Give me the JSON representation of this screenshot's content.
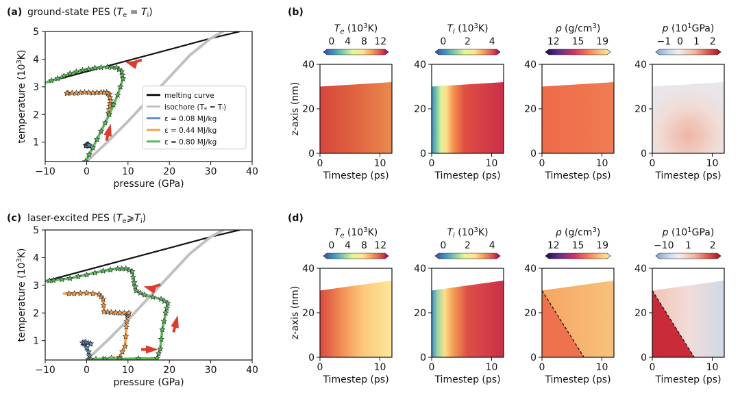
{
  "panels": {
    "a": {
      "label": "(a)",
      "title": "ground-state PES (",
      "title_math": "T",
      "title_sub1": "e",
      "title_eq": " = ",
      "title_math2": "T",
      "title_sub2": "i",
      "title_end": ")"
    },
    "b": {
      "label": "(b)"
    },
    "c": {
      "label": "(c)",
      "title": "laser-excited PES (",
      "title_math": "T",
      "title_sub1": "e",
      "title_eq": "⩾",
      "title_math2": "T",
      "title_sub2": "i",
      "title_end": ")"
    },
    "d": {
      "label": "(d)"
    }
  },
  "pes_axes": {
    "xlabel": "pressure (GPa)",
    "ylabel_main": "temperature (10",
    "ylabel_sup": "3",
    "ylabel_end": "K)",
    "xlim": [
      -10,
      40
    ],
    "ylim": [
      0.3,
      5
    ],
    "xticks": [
      -10,
      0,
      10,
      20,
      30,
      40
    ],
    "yticks": [
      1,
      2,
      3,
      4,
      5
    ]
  },
  "legend": {
    "placement": "lower-right",
    "entries": [
      {
        "label": "melting curve",
        "color": "#111111"
      },
      {
        "label": "isochore (Tₑ = Tᵢ)",
        "color": "#c0c0c0"
      },
      {
        "label": "ε = 0.08 MJ/kg",
        "color": "#5a8fc8"
      },
      {
        "label": "ε = 0.44 MJ/kg",
        "color": "#f7a04d"
      },
      {
        "label": "ε = 0.80 MJ/kg",
        "color": "#5cb85c"
      }
    ]
  },
  "chart_data": [
    {
      "type": "line",
      "panel": "a",
      "series": [
        {
          "name": "melting curve",
          "color": "#111111",
          "x": [
            -10,
            0,
            10,
            20,
            30,
            37
          ],
          "y": [
            3.15,
            3.55,
            3.95,
            4.35,
            4.75,
            5.0
          ]
        },
        {
          "name": "isochore",
          "color": "#c0c0c0",
          "x": [
            0,
            5,
            10,
            15,
            20,
            25,
            30,
            33
          ],
          "y": [
            0.3,
            1.0,
            1.75,
            2.55,
            3.35,
            4.15,
            4.75,
            5.0
          ]
        },
        {
          "name": "ε = 0.08 MJ/kg",
          "color": "#5a8fc8",
          "x": [
            -0.2,
            0.2,
            0.6,
            0.3,
            -0.1,
            0.4,
            0.8
          ],
          "y": [
            0.88,
            0.9,
            0.86,
            0.92,
            0.89,
            0.87,
            0.9
          ]
        },
        {
          "name": "ε = 0.44 MJ/kg",
          "color": "#f7a04d",
          "x": [
            5.3,
            5.6,
            5.8,
            5.5,
            4.8,
            3.5,
            1.5,
            -0.5,
            -2.5,
            -4.5,
            -5.0
          ],
          "y": [
            2.05,
            2.3,
            2.5,
            2.72,
            2.8,
            2.8,
            2.78,
            2.8,
            2.77,
            2.78,
            2.75
          ]
        },
        {
          "name": "ε = 0.80 MJ/kg",
          "color": "#5cb85c",
          "x": [
            -0.3,
            1.5,
            3.5,
            5.5,
            7.5,
            8.8,
            8.5,
            7.2,
            5,
            2,
            -1,
            -4,
            -7,
            -10
          ],
          "y": [
            0.3,
            0.8,
            1.4,
            2.0,
            2.7,
            3.3,
            3.55,
            3.7,
            3.72,
            3.68,
            3.6,
            3.48,
            3.3,
            3.15
          ]
        }
      ],
      "markers_on": [
        "ε = 0.08 MJ/kg",
        "ε = 0.44 MJ/kg",
        "ε = 0.80 MJ/kg"
      ],
      "arrows": [
        {
          "x": 12,
          "y": 3.85,
          "dir": "left"
        },
        {
          "x": 5.3,
          "y": 1.25,
          "dir": "up"
        }
      ]
    },
    {
      "type": "line",
      "panel": "c",
      "series": [
        {
          "name": "melting curve",
          "color": "#111111",
          "x": [
            -10,
            0,
            10,
            20,
            30,
            37
          ],
          "y": [
            3.15,
            3.55,
            3.95,
            4.35,
            4.75,
            5.0
          ]
        },
        {
          "name": "isochore",
          "color": "#c0c0c0",
          "x": [
            0,
            5,
            10,
            15,
            20,
            25,
            30,
            33
          ],
          "y": [
            0.3,
            1.0,
            1.75,
            2.55,
            3.35,
            4.15,
            4.75,
            5.0
          ]
        },
        {
          "name": "ε = 0.08 MJ/kg",
          "color": "#5a8fc8",
          "x": [
            0.8,
            0.5,
            -0.5,
            -1.0,
            -0.2,
            0.9,
            1.1
          ],
          "y": [
            0.3,
            0.6,
            0.88,
            0.92,
            0.95,
            0.88,
            0.9
          ]
        },
        {
          "name": "ε = 0.44 MJ/kg",
          "color": "#f7a04d",
          "x": [
            0.5,
            4,
            8,
            9.3,
            9.6,
            9.8,
            10.2,
            8,
            6,
            4.2,
            4.0,
            3.0,
            0,
            -3,
            -5.5
          ],
          "y": [
            0.33,
            0.34,
            0.4,
            0.8,
            1.5,
            1.9,
            2.0,
            2.0,
            2.02,
            2.05,
            2.5,
            2.68,
            2.72,
            2.7,
            2.7
          ]
        },
        {
          "name": "ε = 0.80 MJ/kg",
          "color": "#5cb85c",
          "x": [
            1,
            8,
            17,
            17.8,
            18.3,
            19.1,
            19.6,
            18,
            14,
            12,
            11.5,
            11,
            9.5,
            7.5,
            4,
            0,
            -4,
            -8,
            -10
          ],
          "y": [
            0.33,
            0.34,
            0.36,
            0.7,
            1.4,
            2.0,
            2.35,
            2.5,
            2.65,
            2.8,
            3.1,
            3.5,
            3.6,
            3.6,
            3.52,
            3.38,
            3.25,
            3.18,
            3.15
          ]
        }
      ],
      "markers_on": [
        "ε = 0.08 MJ/kg",
        "ε = 0.44 MJ/kg",
        "ε = 0.80 MJ/kg"
      ],
      "arrows": [
        {
          "x": 14.5,
          "y": 0.68,
          "dir": "right"
        },
        {
          "x": 21.5,
          "y": 1.5,
          "dir": "up"
        },
        {
          "x": 16.5,
          "y": 2.9,
          "dir": "left"
        }
      ]
    },
    {
      "type": "heatmap",
      "panel": "b/d",
      "xlabel": "Timestep (ps)",
      "ylabel": "z-axis (nm)",
      "xlim": [
        0,
        12
      ],
      "ylim": [
        0,
        40
      ],
      "xticks": [
        0,
        10
      ],
      "yticks": [
        0,
        20,
        40
      ],
      "colorbars": [
        {
          "label": "T",
          "sub": "e",
          "unit": " (10",
          "sup": "3",
          "unit_end": "K)",
          "ticks": [
            "0",
            "4",
            "8",
            "12"
          ],
          "range": [
            0,
            14
          ]
        },
        {
          "label": "T",
          "sub": "i",
          "unit": " (10",
          "sup": "3",
          "unit_end": "K)",
          "ticks": [
            "0",
            "2",
            "4"
          ],
          "range": [
            -0.8,
            5
          ]
        },
        {
          "label": "ρ",
          "sub": "",
          "unit": " (g/cm",
          "sup": "3",
          "unit_end": ")",
          "ticks": [
            "12",
            "15",
            "19"
          ],
          "range": [
            8,
            21
          ]
        },
        {
          "label": "p",
          "sub": "",
          "unit": " (10",
          "sup": "1",
          "unit_end": "GPa)",
          "ticks_b": [
            "−1",
            "0",
            "1",
            "2"
          ],
          "ticks_d": [
            "−10",
            "1",
            "2"
          ]
        }
      ]
    }
  ]
}
